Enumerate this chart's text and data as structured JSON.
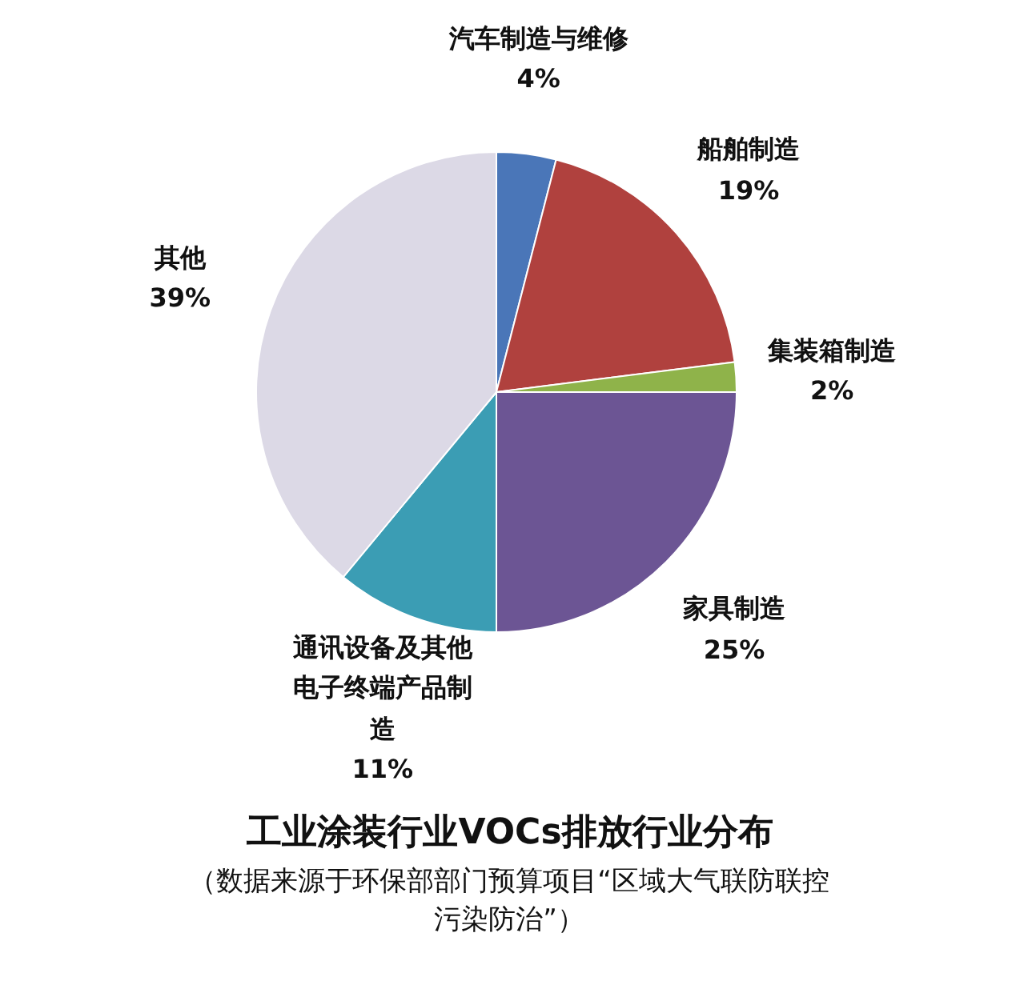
{
  "chart_data": {
    "type": "pie",
    "title": "工业涂装行业VOCs排放行业分布",
    "subtitle": "（数据来源于环保部部门预算项目“区域大气联防联控污染防治”）",
    "categories": [
      "汽车制造与维修",
      "船舶制造",
      "集装箱制造",
      "家具制造",
      "通讯设备及其他电子终端产品制造",
      "其他"
    ],
    "values": [
      4,
      19,
      2,
      25,
      11,
      39
    ],
    "value_labels": [
      "4%",
      "19%",
      "2%",
      "25%",
      "11%",
      "39%"
    ],
    "colors": [
      "#4a76b8",
      "#b0413e",
      "#8fb34a",
      "#6c5594",
      "#3b9db4",
      "#dcd9e6"
    ]
  }
}
